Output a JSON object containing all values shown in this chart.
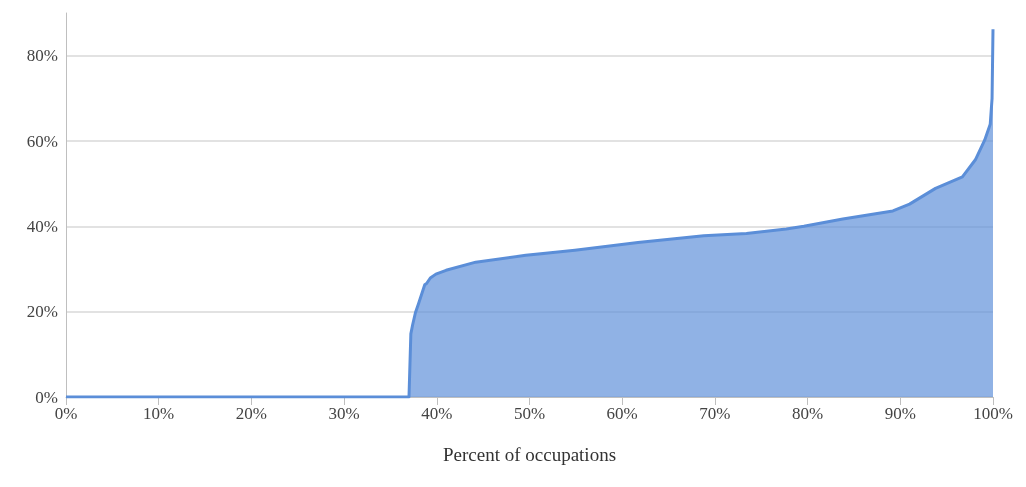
{
  "chart_data": {
    "type": "area",
    "xlabel": "Percent of occupations",
    "grid": "y",
    "x": [
      0,
      37.0,
      37.2,
      37.4,
      37.7,
      38.0,
      38.7,
      38.9,
      39.3,
      39.9,
      41.0,
      44.2,
      49.6,
      52.8,
      54.9,
      61.7,
      68.8,
      73.4,
      77.7,
      79.6,
      83.8,
      89.2,
      91.0,
      93.8,
      96.7,
      98.1,
      99.1,
      99.7,
      99.9,
      100
    ],
    "series": [
      {
        "color": "#5b8ed8",
        "values": [
          0,
          0,
          14.8,
          17,
          19.8,
          21.7,
          26.3,
          26.6,
          27.9,
          28.8,
          29.7,
          31.6,
          33.2,
          33.9,
          34.4,
          36.2,
          37.8,
          38.3,
          39.4,
          40.0,
          41.7,
          43.6,
          45.2,
          48.9,
          51.6,
          55.6,
          60.2,
          63.9,
          70,
          86.2
        ]
      }
    ],
    "xlim": [
      0,
      100
    ],
    "xticks": [
      {
        "value": 0,
        "label": "0%"
      },
      {
        "value": 10,
        "label": "10%"
      },
      {
        "value": 20,
        "label": "20%"
      },
      {
        "value": 30,
        "label": "30%"
      },
      {
        "value": 40,
        "label": "40%"
      },
      {
        "value": 50,
        "label": "50%"
      },
      {
        "value": 60,
        "label": "60%"
      },
      {
        "value": 70,
        "label": "70%"
      },
      {
        "value": 80,
        "label": "80%"
      },
      {
        "value": 90,
        "label": "90%"
      },
      {
        "value": 100,
        "label": "100%"
      }
    ],
    "ylim": [
      0,
      90
    ],
    "yticks": [
      {
        "value": 0,
        "label": "0%"
      },
      {
        "value": 20,
        "label": "20%"
      },
      {
        "value": 40,
        "label": "40%"
      },
      {
        "value": 60,
        "label": "60%"
      },
      {
        "value": 80,
        "label": "80%"
      }
    ]
  }
}
